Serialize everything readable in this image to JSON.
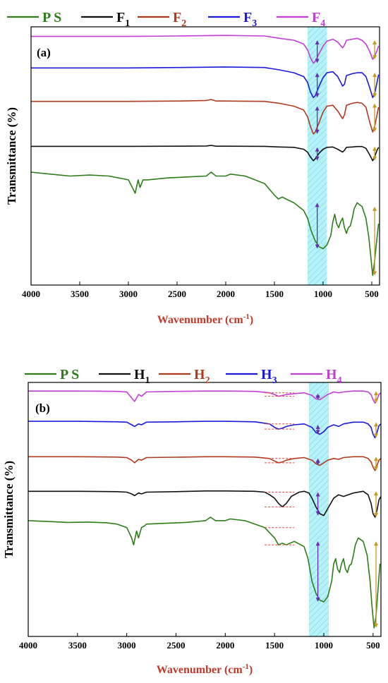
{
  "chart_data": [
    {
      "type": "line",
      "panel_label": "(a)",
      "xlabel": "Wavenumber (cm",
      "xlabel_sup": "-1",
      "xlabel_end": ")",
      "ylabel": "Transmittance (%)",
      "xlim": [
        4000,
        420
      ],
      "x_ticks": [
        "4000",
        "3500",
        "3000",
        "2500",
        "2000",
        "1500",
        "1000",
        "500"
      ],
      "highlight_band": [
        1160,
        960
      ],
      "legend": [
        {
          "main": "P S",
          "sub": "",
          "color": "#2e7d1a"
        },
        {
          "main": "F",
          "sub": "1",
          "color": "#111111"
        },
        {
          "main": "F",
          "sub": "2",
          "color": "#b03a1e"
        },
        {
          "main": "F",
          "sub": "3",
          "color": "#1a1adb"
        },
        {
          "main": "F",
          "sub": "4",
          "color": "#c23fd6"
        }
      ],
      "series": [
        {
          "name": "F4",
          "color": "#c23fd6",
          "x": [
            4000,
            3500,
            3000,
            2500,
            2000,
            1600,
            1450,
            1300,
            1200,
            1160,
            1130,
            1100,
            1080,
            1040,
            1000,
            960,
            900,
            850,
            800,
            780,
            760,
            700,
            650,
            600,
            560,
            520,
            490,
            470,
            450,
            430
          ],
          "y": [
            0.95,
            0.95,
            0.95,
            0.952,
            0.955,
            0.952,
            0.94,
            0.93,
            0.91,
            0.88,
            0.84,
            0.81,
            0.82,
            0.86,
            0.9,
            0.925,
            0.935,
            0.92,
            0.89,
            0.905,
            0.93,
            0.935,
            0.94,
            0.93,
            0.91,
            0.87,
            0.83,
            0.85,
            0.87,
            0.9
          ]
        },
        {
          "name": "F3",
          "color": "#1a1adb",
          "x": [
            4000,
            3500,
            3000,
            2500,
            2000,
            1600,
            1450,
            1300,
            1200,
            1160,
            1130,
            1100,
            1080,
            1040,
            1000,
            960,
            900,
            850,
            800,
            780,
            760,
            700,
            650,
            600,
            560,
            520,
            490,
            470,
            450,
            430
          ],
          "y": [
            0.785,
            0.785,
            0.785,
            0.787,
            0.79,
            0.787,
            0.775,
            0.76,
            0.74,
            0.71,
            0.66,
            0.63,
            0.64,
            0.69,
            0.735,
            0.76,
            0.765,
            0.74,
            0.69,
            0.7,
            0.745,
            0.755,
            0.76,
            0.76,
            0.74,
            0.68,
            0.63,
            0.65,
            0.7,
            0.75
          ]
        },
        {
          "name": "F2",
          "color": "#b03a1e",
          "x": [
            4000,
            3500,
            3000,
            2500,
            2200,
            2150,
            2100,
            2000,
            1600,
            1450,
            1300,
            1200,
            1160,
            1130,
            1100,
            1080,
            1040,
            1000,
            960,
            900,
            850,
            800,
            780,
            760,
            700,
            650,
            600,
            560,
            520,
            490,
            470,
            450,
            430
          ],
          "y": [
            0.61,
            0.61,
            0.61,
            0.612,
            0.615,
            0.62,
            0.612,
            0.612,
            0.61,
            0.6,
            0.585,
            0.565,
            0.53,
            0.48,
            0.44,
            0.45,
            0.5,
            0.555,
            0.585,
            0.59,
            0.56,
            0.52,
            0.54,
            0.59,
            0.6,
            0.605,
            0.6,
            0.58,
            0.5,
            0.45,
            0.48,
            0.53,
            0.58
          ]
        },
        {
          "name": "F1",
          "color": "#111111",
          "x": [
            4000,
            3500,
            3000,
            2500,
            2200,
            2150,
            2100,
            2000,
            1600,
            1450,
            1300,
            1200,
            1160,
            1130,
            1100,
            1080,
            1040,
            1000,
            960,
            900,
            850,
            800,
            780,
            760,
            700,
            650,
            600,
            560,
            520,
            490,
            470,
            450,
            430
          ],
          "y": [
            0.375,
            0.375,
            0.375,
            0.376,
            0.377,
            0.38,
            0.376,
            0.376,
            0.375,
            0.372,
            0.37,
            0.36,
            0.345,
            0.32,
            0.3,
            0.31,
            0.34,
            0.36,
            0.37,
            0.372,
            0.36,
            0.345,
            0.355,
            0.37,
            0.372,
            0.374,
            0.374,
            0.365,
            0.33,
            0.3,
            0.32,
            0.35,
            0.37
          ]
        },
        {
          "name": "PS",
          "color": "#2e7d1a",
          "x": [
            4000,
            3800,
            3600,
            3400,
            3200,
            3100,
            3050,
            3000,
            2950,
            2930,
            2900,
            2880,
            2850,
            2820,
            2800,
            2600,
            2400,
            2200,
            2150,
            2100,
            2000,
            1950,
            1800,
            1700,
            1600,
            1500,
            1460,
            1420,
            1380,
            1300,
            1200,
            1160,
            1120,
            1080,
            1040,
            1000,
            960,
            920,
            900,
            880,
            860,
            840,
            820,
            800,
            780,
            760,
            740,
            720,
            700,
            680,
            650,
            600,
            560,
            530,
            510,
            490,
            470,
            450,
            430
          ],
          "y": [
            0.24,
            0.23,
            0.22,
            0.225,
            0.22,
            0.21,
            0.205,
            0.2,
            0.15,
            0.13,
            0.2,
            0.16,
            0.2,
            0.2,
            0.2,
            0.21,
            0.215,
            0.22,
            0.24,
            0.22,
            0.22,
            0.23,
            0.22,
            0.2,
            0.18,
            0.12,
            0.1,
            0.11,
            0.1,
            0.08,
            0.04,
            0.0,
            -0.07,
            -0.12,
            -0.15,
            -0.16,
            -0.14,
            -0.09,
            -0.02,
            0.02,
            -0.03,
            -0.05,
            -0.02,
            0.0,
            -0.05,
            -0.08,
            -0.05,
            -0.04,
            0.0,
            0.05,
            0.08,
            0.06,
            0.0,
            -0.1,
            -0.2,
            -0.3,
            -0.22,
            -0.12,
            -0.03
          ]
        }
      ]
    },
    {
      "type": "line",
      "panel_label": "(b)",
      "xlabel": "Wavenumber (cm",
      "xlabel_sup": "-1",
      "xlabel_end": ")",
      "ylabel": "Transmittance (%)",
      "xlim": [
        4000,
        420
      ],
      "x_ticks": [
        "4000",
        "3500",
        "3000",
        "2500",
        "2000",
        "1500",
        "1000",
        "500"
      ],
      "highlight_band": [
        1150,
        950
      ],
      "legend": [
        {
          "main": "P S",
          "sub": "",
          "color": "#2e7d1a"
        },
        {
          "main": "H",
          "sub": "1",
          "color": "#111111"
        },
        {
          "main": "H",
          "sub": "2",
          "color": "#b03a1e"
        },
        {
          "main": "H",
          "sub": "3",
          "color": "#1a1adb"
        },
        {
          "main": "H",
          "sub": "4",
          "color": "#c23fd6"
        }
      ],
      "series": [
        {
          "name": "H4",
          "color": "#c23fd6",
          "x": [
            4000,
            3500,
            3100,
            3000,
            2950,
            2920,
            2880,
            2850,
            2800,
            2500,
            2200,
            2000,
            1700,
            1550,
            1500,
            1460,
            1420,
            1380,
            1300,
            1200,
            1120,
            1080,
            1040,
            1000,
            960,
            900,
            850,
            800,
            700,
            600,
            550,
            520,
            500,
            480,
            460,
            440,
            420
          ],
          "y": [
            0.95,
            0.95,
            0.948,
            0.945,
            0.91,
            0.89,
            0.93,
            0.92,
            0.945,
            0.948,
            0.95,
            0.95,
            0.948,
            0.94,
            0.93,
            0.92,
            0.925,
            0.93,
            0.935,
            0.94,
            0.925,
            0.905,
            0.9,
            0.915,
            0.93,
            0.945,
            0.94,
            0.945,
            0.95,
            0.95,
            0.945,
            0.93,
            0.9,
            0.88,
            0.9,
            0.93,
            0.94
          ]
        },
        {
          "name": "H3",
          "color": "#1a1adb",
          "x": [
            4000,
            3500,
            3100,
            3000,
            2950,
            2920,
            2880,
            2850,
            2800,
            2500,
            2200,
            2000,
            1700,
            1550,
            1500,
            1460,
            1420,
            1380,
            1300,
            1200,
            1120,
            1080,
            1040,
            1000,
            960,
            900,
            850,
            800,
            700,
            600,
            550,
            520,
            500,
            480,
            460,
            440,
            420
          ],
          "y": [
            0.775,
            0.775,
            0.772,
            0.77,
            0.755,
            0.745,
            0.76,
            0.755,
            0.77,
            0.772,
            0.775,
            0.775,
            0.772,
            0.76,
            0.74,
            0.73,
            0.735,
            0.745,
            0.755,
            0.76,
            0.74,
            0.71,
            0.7,
            0.715,
            0.74,
            0.755,
            0.745,
            0.76,
            0.77,
            0.77,
            0.76,
            0.74,
            0.7,
            0.68,
            0.71,
            0.75,
            0.76
          ]
        },
        {
          "name": "H2",
          "color": "#b03a1e",
          "x": [
            4000,
            3500,
            3100,
            3000,
            2950,
            2920,
            2880,
            2850,
            2800,
            2500,
            2200,
            2000,
            1700,
            1550,
            1500,
            1460,
            1420,
            1380,
            1300,
            1200,
            1120,
            1080,
            1040,
            1000,
            960,
            900,
            850,
            800,
            700,
            600,
            550,
            520,
            500,
            480,
            460,
            440,
            420
          ],
          "y": [
            0.57,
            0.57,
            0.568,
            0.565,
            0.55,
            0.535,
            0.555,
            0.55,
            0.565,
            0.567,
            0.57,
            0.57,
            0.568,
            0.56,
            0.545,
            0.535,
            0.54,
            0.55,
            0.56,
            0.565,
            0.55,
            0.53,
            0.52,
            0.535,
            0.55,
            0.56,
            0.555,
            0.565,
            0.57,
            0.57,
            0.56,
            0.54,
            0.51,
            0.49,
            0.52,
            0.55,
            0.56
          ]
        },
        {
          "name": "H1",
          "color": "#111111",
          "x": [
            4000,
            3500,
            3100,
            3000,
            2950,
            2920,
            2880,
            2850,
            2800,
            2500,
            2200,
            2000,
            1700,
            1600,
            1550,
            1500,
            1460,
            1420,
            1380,
            1330,
            1250,
            1200,
            1150,
            1120,
            1080,
            1040,
            1000,
            960,
            900,
            850,
            800,
            700,
            600,
            550,
            520,
            500,
            480,
            460,
            440,
            420
          ],
          "y": [
            0.37,
            0.37,
            0.368,
            0.365,
            0.355,
            0.345,
            0.36,
            0.355,
            0.365,
            0.368,
            0.372,
            0.372,
            0.37,
            0.365,
            0.35,
            0.33,
            0.3,
            0.28,
            0.3,
            0.34,
            0.365,
            0.37,
            0.36,
            0.33,
            0.28,
            0.24,
            0.23,
            0.27,
            0.33,
            0.35,
            0.34,
            0.36,
            0.37,
            0.35,
            0.3,
            0.24,
            0.22,
            0.26,
            0.32,
            0.34
          ]
        },
        {
          "name": "PS",
          "color": "#2e7d1a",
          "x": [
            4000,
            3800,
            3600,
            3400,
            3200,
            3100,
            3050,
            3000,
            2950,
            2930,
            2900,
            2880,
            2850,
            2820,
            2800,
            2600,
            2400,
            2200,
            2150,
            2100,
            2000,
            1950,
            1800,
            1700,
            1600,
            1500,
            1460,
            1420,
            1380,
            1300,
            1200,
            1160,
            1120,
            1080,
            1040,
            1000,
            960,
            920,
            900,
            880,
            860,
            840,
            820,
            800,
            780,
            760,
            740,
            720,
            700,
            680,
            650,
            600,
            560,
            530,
            510,
            490,
            470,
            450,
            430
          ],
          "y": [
            0.2,
            0.195,
            0.19,
            0.192,
            0.188,
            0.18,
            0.17,
            0.16,
            0.1,
            0.06,
            0.14,
            0.1,
            0.16,
            0.17,
            0.18,
            0.185,
            0.19,
            0.2,
            0.22,
            0.2,
            0.2,
            0.21,
            0.2,
            0.18,
            0.16,
            0.1,
            0.06,
            0.07,
            0.06,
            0.08,
            0.05,
            -0.02,
            -0.15,
            -0.22,
            -0.26,
            -0.27,
            -0.24,
            -0.15,
            -0.05,
            -0.02,
            -0.08,
            -0.1,
            -0.05,
            -0.02,
            -0.08,
            -0.1,
            -0.06,
            -0.05,
            0.0,
            0.06,
            0.1,
            0.08,
            0.0,
            -0.15,
            -0.3,
            -0.42,
            -0.35,
            -0.2,
            -0.05
          ]
        }
      ]
    }
  ]
}
